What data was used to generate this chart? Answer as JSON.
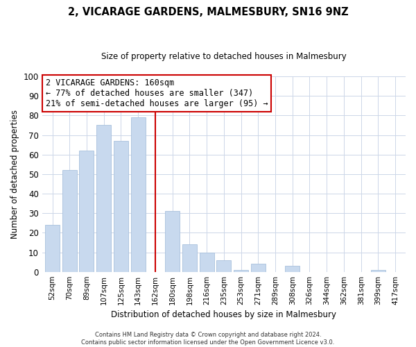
{
  "title": "2, VICARAGE GARDENS, MALMESBURY, SN16 9NZ",
  "subtitle": "Size of property relative to detached houses in Malmesbury",
  "xlabel": "Distribution of detached houses by size in Malmesbury",
  "ylabel": "Number of detached properties",
  "bar_labels": [
    "52sqm",
    "70sqm",
    "89sqm",
    "107sqm",
    "125sqm",
    "143sqm",
    "162sqm",
    "180sqm",
    "198sqm",
    "216sqm",
    "235sqm",
    "253sqm",
    "271sqm",
    "289sqm",
    "308sqm",
    "326sqm",
    "344sqm",
    "362sqm",
    "381sqm",
    "399sqm",
    "417sqm"
  ],
  "bar_values": [
    24,
    52,
    62,
    75,
    67,
    79,
    0,
    31,
    14,
    10,
    6,
    1,
    4,
    0,
    3,
    0,
    0,
    0,
    0,
    1,
    0
  ],
  "bar_color": "#c8d9ee",
  "bar_edge_color": "#a8c0dc",
  "vline_x": 6,
  "vline_color": "#cc0000",
  "ylim": [
    0,
    100
  ],
  "yticks": [
    0,
    10,
    20,
    30,
    40,
    50,
    60,
    70,
    80,
    90,
    100
  ],
  "annotation_title": "2 VICARAGE GARDENS: 160sqm",
  "annotation_line1": "← 77% of detached houses are smaller (347)",
  "annotation_line2": "21% of semi-detached houses are larger (95) →",
  "annotation_box_color": "#ffffff",
  "annotation_box_edge": "#cc0000",
  "footer_line1": "Contains HM Land Registry data © Crown copyright and database right 2024.",
  "footer_line2": "Contains public sector information licensed under the Open Government Licence v3.0.",
  "background_color": "#ffffff",
  "grid_color": "#ccd6e8"
}
